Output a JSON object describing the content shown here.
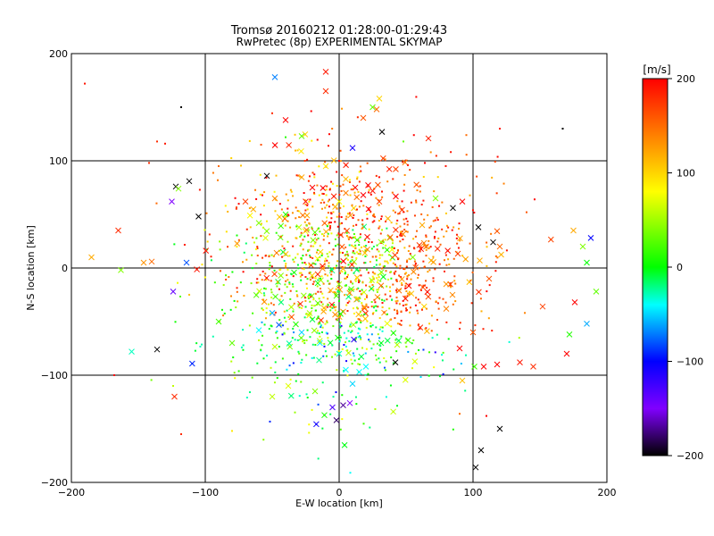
{
  "chart_data": {
    "type": "scatter",
    "title": "Tromsø 20160212 01:28:00-01:29:43",
    "subtitle": "RwPretec (8p) EXPERIMENTAL SKYMAP",
    "xlabel": "E-W location [km]",
    "ylabel": "N-S location [km]",
    "xlim": [
      -200,
      200
    ],
    "ylim": [
      -200,
      200
    ],
    "x_ticks": [
      -200,
      -100,
      0,
      100,
      200
    ],
    "y_ticks": [
      -200,
      -100,
      0,
      100,
      200
    ],
    "x_tick_labels": [
      "−200",
      "−100",
      "0",
      "100",
      "200"
    ],
    "y_tick_labels": [
      "−200",
      "−100",
      "0",
      "100",
      "200"
    ],
    "grid": true,
    "colorbar": {
      "label": "[m/s]",
      "range": [
        -200,
        200
      ],
      "ticks": [
        -200,
        -100,
        0,
        100,
        200
      ],
      "tick_labels": [
        "−200",
        "−100",
        "0",
        "100",
        "200"
      ],
      "colormap": [
        "#000000",
        "#8000ff",
        "#0000ff",
        "#00ffff",
        "#00ff00",
        "#ffff00",
        "#ff8000",
        "#ff0000"
      ]
    },
    "series": [
      {
        "marker": "x-large",
        "points": [
          [
            -48,
            178,
            -70
          ],
          [
            -10,
            183,
            190
          ],
          [
            28,
            148,
            150
          ],
          [
            32,
            127,
            -210
          ],
          [
            -40,
            138,
            200
          ],
          [
            -28,
            123,
            30
          ],
          [
            -122,
            76,
            -210
          ],
          [
            -125,
            62,
            -150
          ],
          [
            -112,
            81,
            -200
          ],
          [
            -54,
            86,
            -200
          ],
          [
            -10,
            95,
            90
          ],
          [
            -70,
            62,
            170
          ],
          [
            -105,
            48,
            -200
          ],
          [
            -120,
            74,
            40
          ],
          [
            -140,
            6,
            150
          ],
          [
            -146,
            5,
            130
          ],
          [
            -165,
            35,
            180
          ],
          [
            -185,
            10,
            120
          ],
          [
            -163,
            -2,
            40
          ],
          [
            -114,
            5,
            -80
          ],
          [
            -124,
            -22,
            -140
          ],
          [
            -136,
            -76,
            -220
          ],
          [
            -155,
            -78,
            -30
          ],
          [
            -123,
            -120,
            180
          ],
          [
            -50,
            -42,
            -60
          ],
          [
            -45,
            -53,
            -80
          ],
          [
            -20,
            -48,
            -10
          ],
          [
            -28,
            -60,
            -50
          ],
          [
            -38,
            -110,
            70
          ],
          [
            -50,
            -120,
            60
          ],
          [
            -18,
            -115,
            40
          ],
          [
            -80,
            -70,
            30
          ],
          [
            -60,
            -58,
            -40
          ],
          [
            -90,
            -50,
            20
          ],
          [
            -5,
            -130,
            -130
          ],
          [
            3,
            -128,
            -170
          ],
          [
            8,
            -126,
            -150
          ],
          [
            -2,
            -142,
            -180
          ],
          [
            42,
            -88,
            -210
          ],
          [
            15,
            -97,
            -40
          ],
          [
            5,
            -95,
            -40
          ],
          [
            10,
            -108,
            -50
          ],
          [
            0,
            -80,
            -30
          ],
          [
            -15,
            -86,
            -20
          ],
          [
            20,
            -92,
            -40
          ],
          [
            25,
            150,
            30
          ],
          [
            30,
            158,
            100
          ],
          [
            18,
            140,
            160
          ],
          [
            -10,
            165,
            180
          ],
          [
            10,
            112,
            -110
          ],
          [
            12,
            75,
            200
          ],
          [
            18,
            68,
            200
          ],
          [
            25,
            72,
            190
          ],
          [
            30,
            62,
            170
          ],
          [
            5,
            70,
            140
          ],
          [
            22,
            55,
            200
          ],
          [
            0,
            62,
            80
          ],
          [
            -20,
            75,
            200
          ],
          [
            -25,
            62,
            190
          ],
          [
            -40,
            50,
            10
          ],
          [
            -60,
            42,
            40
          ],
          [
            -55,
            28,
            70
          ],
          [
            -30,
            38,
            60
          ],
          [
            62,
            40,
            120
          ],
          [
            72,
            65,
            40
          ],
          [
            85,
            56,
            -200
          ],
          [
            92,
            62,
            200
          ],
          [
            104,
            38,
            -210
          ],
          [
            115,
            24,
            -210
          ],
          [
            120,
            20,
            150
          ],
          [
            105,
            7,
            120
          ],
          [
            112,
            -10,
            160
          ],
          [
            118,
            -90,
            200
          ],
          [
            108,
            -92,
            200
          ],
          [
            135,
            -88,
            190
          ],
          [
            145,
            -92,
            180
          ],
          [
            152,
            -36,
            170
          ],
          [
            182,
            20,
            40
          ],
          [
            175,
            35,
            120
          ],
          [
            188,
            28,
            -100
          ],
          [
            185,
            5,
            0
          ],
          [
            192,
            -22,
            30
          ],
          [
            185,
            -52,
            -60
          ],
          [
            172,
            -62,
            10
          ],
          [
            170,
            -80,
            200
          ],
          [
            176,
            -32,
            200
          ],
          [
            120,
            -150,
            -210
          ],
          [
            106,
            -170,
            -210
          ],
          [
            102,
            -186,
            -210
          ],
          [
            92,
            -105,
            110
          ],
          [
            90,
            -75,
            200
          ],
          [
            100,
            -60,
            160
          ],
          [
            80,
            -38,
            140
          ],
          [
            80,
            -15,
            130
          ],
          [
            55,
            10,
            40
          ],
          [
            65,
            20,
            150
          ],
          [
            -2,
            -26,
            20
          ]
        ]
      },
      {
        "marker": "dot-small",
        "points": [
          [
            -190,
            172,
            190
          ],
          [
            -118,
            150,
            -200
          ],
          [
            -136,
            118,
            180
          ],
          [
            -130,
            116,
            190
          ],
          [
            -142,
            98,
            180
          ],
          [
            -90,
            95,
            150
          ],
          [
            167,
            130,
            -210
          ],
          [
            120,
            130,
            190
          ],
          [
            95,
            124,
            150
          ],
          [
            64,
            98,
            200
          ],
          [
            146,
            64,
            200
          ],
          [
            140,
            52,
            160
          ],
          [
            110,
            -138,
            200
          ],
          [
            90,
            -136,
            150
          ],
          [
            -168,
            -100,
            200
          ],
          [
            -124,
            -110,
            60
          ],
          [
            -118,
            -155,
            180
          ],
          [
            -80,
            -152,
            90
          ],
          [
            -40,
            122,
            10
          ],
          [
            -8,
            114,
            190
          ],
          [
            0,
            100,
            200
          ],
          [
            48,
            118,
            30
          ]
        ]
      }
    ],
    "cloud": {
      "marker": "dot-small",
      "description_points": 1500,
      "center": [
        5,
        -5
      ],
      "spread": [
        45,
        55
      ],
      "velocity_range": [
        -200,
        200
      ]
    }
  }
}
